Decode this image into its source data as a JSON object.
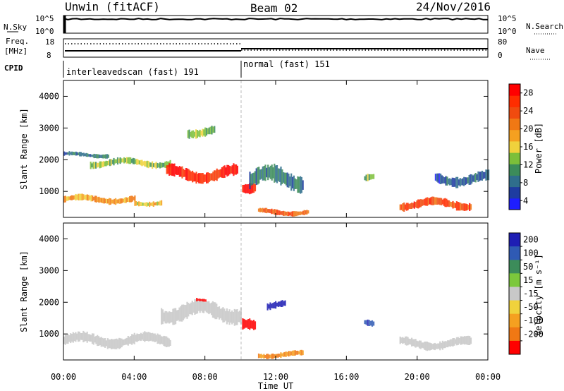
{
  "header": {
    "site": "Unwin (fitACF)",
    "beam": "Beam 02",
    "date": "24/Nov/2016"
  },
  "top_panels": {
    "nsky_label": "N.Sky",
    "nsearch_label": "N.Search",
    "nsky_ticks": [
      "10^5",
      "10^0"
    ],
    "nsearch_ticks": [
      "10^5",
      "10^0"
    ],
    "freq_label": "Freq.",
    "freq_unit": "[MHz]",
    "freq_ticks": [
      "18",
      "8"
    ],
    "nave_label": "Nave",
    "nave_ticks": [
      "80",
      "0"
    ],
    "cpid_label": "CPID",
    "cpid_segments": [
      "interleavedscan (fast) 191",
      "normal (fast) 151"
    ]
  },
  "x_axis": {
    "label": "Time UT",
    "ticks": [
      "00:00",
      "04:00",
      "08:00",
      "12:00",
      "16:00",
      "20:00",
      "00:00"
    ]
  },
  "power_panel": {
    "ylabel": "Slant Range [km]",
    "yticks": [
      "1000",
      "2000",
      "3000",
      "4000"
    ],
    "colorbar_label": "Power [dB]",
    "colorbar_ticks": [
      "4",
      "8",
      "12",
      "16",
      "20",
      "24",
      "28"
    ],
    "colors": [
      "#1e1eff",
      "#1e3ca0",
      "#2f6e8c",
      "#3c8c5a",
      "#7cbf3a",
      "#f0d23c",
      "#f5a020",
      "#f07814",
      "#f04b0f",
      "#ff2d00",
      "#ff0000"
    ]
  },
  "velocity_panel": {
    "ylabel": "Slant Range [km]",
    "yticks": [
      "1000",
      "2000",
      "3000",
      "4000"
    ],
    "colorbar_label": "Velocity [m s⁻¹]",
    "colorbar_ticks": [
      "200",
      "100",
      "50",
      "15",
      "-15",
      "-50",
      "-100",
      "-200"
    ],
    "colors": [
      "#1e1eb4",
      "#2f5ab4",
      "#3c8c5a",
      "#7cc83c",
      "#c8c8c8",
      "#f0d23c",
      "#f5a020",
      "#f07814",
      "#ff0000"
    ]
  },
  "chart_data": {
    "type": "heatmap",
    "title": "Unwin (fitACF) Beam 02 24/Nov/2016",
    "xlabel": "Time UT",
    "ylabel": "Slant Range [km]",
    "xlim": [
      0,
      24
    ],
    "ylim": [
      180,
      4500
    ],
    "mode_change_hour": 10.0,
    "power_echoes": [
      {
        "t0": 0.0,
        "t1": 4.0,
        "r_center": 750,
        "r_width": 180,
        "db": 18
      },
      {
        "t0": 0.0,
        "t1": 2.5,
        "r_center": 2150,
        "r_width": 120,
        "db": 8
      },
      {
        "t0": 1.5,
        "t1": 6.0,
        "r_center": 1900,
        "r_width": 200,
        "db": 12
      },
      {
        "t0": 4.0,
        "t1": 5.5,
        "r_center": 650,
        "r_width": 150,
        "db": 16
      },
      {
        "t0": 5.8,
        "t1": 9.8,
        "r_center": 1550,
        "r_width": 350,
        "db": 26
      },
      {
        "t0": 7.0,
        "t1": 8.5,
        "r_center": 2900,
        "r_width": 250,
        "db": 12
      },
      {
        "t0": 10.1,
        "t1": 10.8,
        "r_center": 1200,
        "r_width": 300,
        "db": 28
      },
      {
        "t0": 10.5,
        "t1": 13.5,
        "r_center": 1400,
        "r_width": 500,
        "db": 8
      },
      {
        "t0": 11.0,
        "t1": 13.8,
        "r_center": 350,
        "r_width": 150,
        "db": 22
      },
      {
        "t0": 17.0,
        "t1": 17.5,
        "r_center": 1400,
        "r_width": 200,
        "db": 12
      },
      {
        "t0": 19.0,
        "t1": 23.0,
        "r_center": 600,
        "r_width": 250,
        "db": 24
      },
      {
        "t0": 21.0,
        "t1": 24.0,
        "r_center": 1400,
        "r_width": 300,
        "db": 6
      }
    ],
    "velocity_echoes": [
      {
        "t0": 0.0,
        "t1": 6.0,
        "r_center": 800,
        "r_width": 300,
        "v": 0
      },
      {
        "t0": 5.5,
        "t1": 10.0,
        "r_center": 1700,
        "r_width": 450,
        "v": 0
      },
      {
        "t0": 7.5,
        "t1": 8.0,
        "r_center": 2050,
        "r_width": 100,
        "v": -200
      },
      {
        "t0": 10.1,
        "t1": 10.8,
        "r_center": 1200,
        "r_width": 300,
        "v": -200
      },
      {
        "t0": 11.0,
        "t1": 13.5,
        "r_center": 350,
        "r_width": 150,
        "v": -100
      },
      {
        "t0": 11.5,
        "t1": 12.5,
        "r_center": 1900,
        "r_width": 200,
        "v": 200
      },
      {
        "t0": 17.0,
        "t1": 17.5,
        "r_center": 1400,
        "r_width": 200,
        "v": 150
      },
      {
        "t0": 19.0,
        "t1": 23.0,
        "r_center": 700,
        "r_width": 250,
        "v": 0
      }
    ]
  }
}
